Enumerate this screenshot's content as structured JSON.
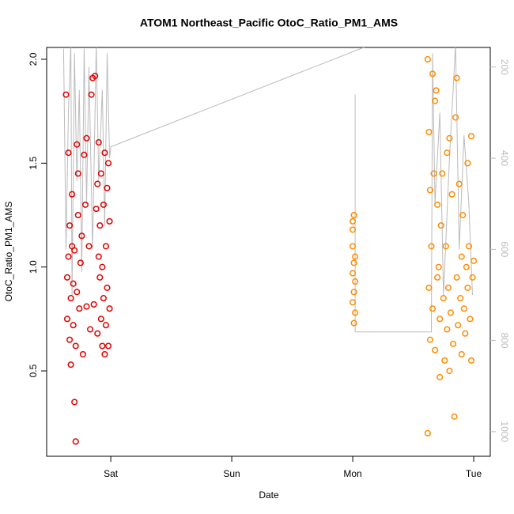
{
  "chart_data": {
    "type": "scatter",
    "title": "ATOM1 Northeast_Pacific OtoC_Ratio_PM1_AMS",
    "x_label": "Date",
    "y_label": "OtoC_Ratio_PM1_AMS",
    "xlim": [
      -0.53,
      3.137
    ],
    "xticks": [
      {
        "value": 0,
        "label": "Sat"
      },
      {
        "value": 1,
        "label": "Sun"
      },
      {
        "value": 2,
        "label": "Mon"
      },
      {
        "value": 3,
        "label": "Tue"
      }
    ],
    "ylim": [
      0.089,
      2.057
    ],
    "yticks": [
      0.5,
      {
        "value": 1,
        "label": "1.0"
      },
      1.5,
      {
        "value": 2,
        "label": "2.0"
      }
    ],
    "y2lim": [
      1054,
      157
    ],
    "y2ticks": [
      200,
      400,
      600,
      800,
      1000
    ],
    "series": [
      {
        "color": "#e00000",
        "x": [
          -0.37,
          -0.36,
          -0.36,
          -0.35,
          -0.35,
          -0.34,
          -0.34,
          -0.33,
          -0.33,
          -0.32,
          -0.32,
          -0.31,
          -0.31,
          -0.3,
          -0.3,
          -0.29,
          -0.29,
          -0.28,
          -0.28,
          -0.27,
          -0.27,
          -0.26,
          -0.25,
          -0.24,
          -0.23,
          -0.22,
          -0.21,
          -0.2,
          -0.2,
          -0.18,
          -0.17,
          -0.16,
          -0.15,
          -0.14,
          -0.13,
          -0.12,
          -0.11,
          -0.11,
          -0.1,
          -0.1,
          -0.09,
          -0.09,
          -0.08,
          -0.08,
          -0.07,
          -0.07,
          -0.06,
          -0.06,
          -0.05,
          -0.05,
          -0.04,
          -0.04,
          -0.03,
          -0.03,
          -0.02,
          -0.02,
          -0.01,
          -0.01
        ],
        "values": [
          1.83,
          0.75,
          0.95,
          1.05,
          1.55,
          0.65,
          1.2,
          0.53,
          0.85,
          1.1,
          1.35,
          0.72,
          0.92,
          1.08,
          0.35,
          0.16,
          0.62,
          1.59,
          0.88,
          1.25,
          1.45,
          0.8,
          1.02,
          1.15,
          0.58,
          1.54,
          1.3,
          0.81,
          1.62,
          1.1,
          0.7,
          1.83,
          1.91,
          0.82,
          1.92,
          1.28,
          1.4,
          0.68,
          1.05,
          1.6,
          0.95,
          1.2,
          0.75,
          1.45,
          0.62,
          1.0,
          1.3,
          0.85,
          1.55,
          0.58,
          1.1,
          0.72,
          1.38,
          0.9,
          0.62,
          1.5,
          0.8,
          1.22
        ]
      },
      {
        "color": "#ff8c00",
        "x": [
          2.0,
          2.01,
          2.0,
          2.01,
          2.0,
          2.02,
          2.01,
          2.0,
          2.02,
          2.01,
          2.0,
          2.02,
          2.62,
          2.62,
          2.63,
          2.63,
          2.64,
          2.64,
          2.65,
          2.66,
          2.66,
          2.67,
          2.68,
          2.68,
          2.69,
          2.7,
          2.7,
          2.71,
          2.72,
          2.72,
          2.73,
          2.74,
          2.75,
          2.76,
          2.77,
          2.78,
          2.79,
          2.8,
          2.8,
          2.81,
          2.82,
          2.83,
          2.84,
          2.85,
          2.86,
          2.86,
          2.87,
          2.88,
          2.89,
          2.9,
          2.9,
          2.91,
          2.92,
          2.93,
          2.94,
          2.95,
          2.96,
          2.97,
          2.98,
          2.98,
          2.99,
          3.0,
          2.95,
          2.78
        ],
        "values": [
          1.22,
          1.25,
          1.1,
          1.02,
          0.97,
          0.93,
          0.88,
          0.83,
          0.78,
          0.73,
          1.18,
          1.05,
          2.0,
          0.2,
          1.65,
          0.9,
          1.37,
          0.65,
          1.1,
          1.93,
          0.8,
          1.45,
          1.8,
          0.6,
          1.85,
          1.3,
          0.95,
          1.0,
          0.75,
          0.47,
          1.2,
          1.45,
          0.85,
          0.55,
          1.1,
          0.7,
          0.9,
          0.5,
          1.62,
          0.78,
          1.35,
          0.63,
          0.28,
          1.72,
          0.95,
          1.91,
          0.72,
          1.4,
          0.85,
          1.05,
          0.58,
          1.25,
          0.8,
          0.68,
          1.0,
          0.9,
          1.1,
          0.75,
          1.63,
          0.55,
          0.95,
          1.03,
          1.5,
          1.55
        ]
      },
      {
        "type": "line",
        "axis": "y2",
        "color": "#bbbbbb",
        "x": [
          -0.39,
          -0.37,
          -0.35,
          -0.33,
          -0.32,
          -0.3,
          -0.28,
          -0.26,
          -0.24,
          -0.22,
          -0.2,
          -0.18,
          -0.15,
          -0.12,
          -0.1,
          -0.07,
          -0.05,
          -0.03,
          -0.01,
          0,
          2.35,
          2.2,
          2.02,
          2.02,
          2.65,
          2.66,
          2.68,
          2.72,
          2.75,
          2.8,
          2.85,
          2.88,
          2.92,
          2.96,
          2.99
        ],
        "values": [
          160,
          600,
          300,
          150,
          700,
          170,
          450,
          250,
          650,
          160,
          500,
          200,
          600,
          150,
          450,
          250,
          550,
          170,
          400,
          375,
          130,
          null,
          260,
          781,
          781,
          170,
          500,
          300,
          700,
          400,
          150,
          600,
          350,
          500,
          700
        ]
      }
    ]
  }
}
